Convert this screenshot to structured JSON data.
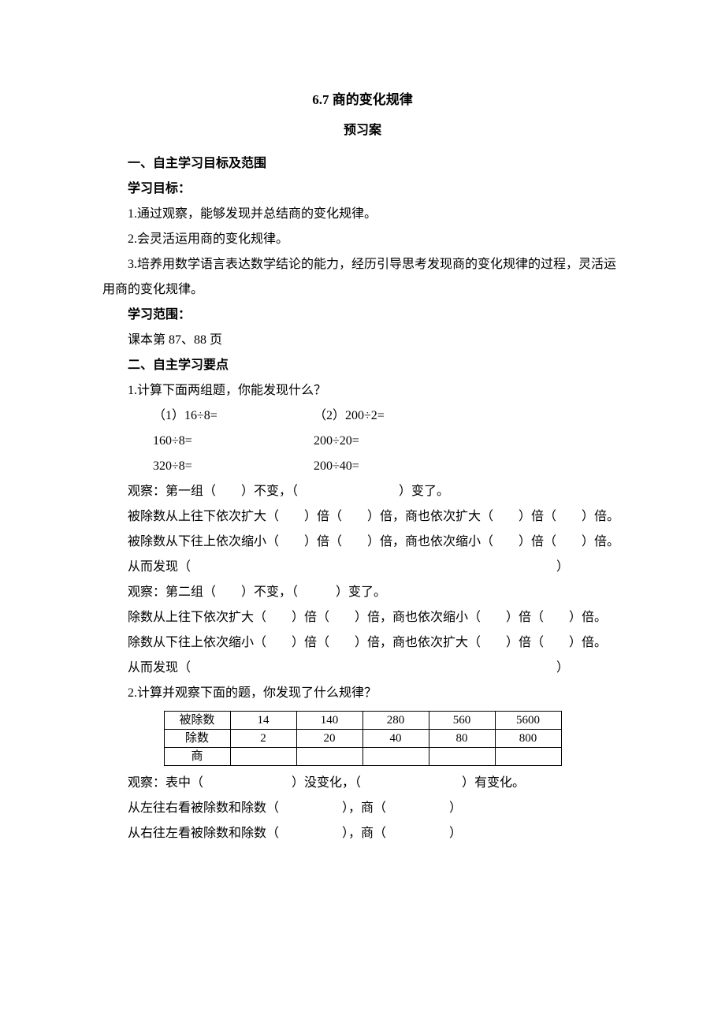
{
  "title": "6.7 商的变化规律",
  "subtitle": "预习案",
  "section1": {
    "head": "一、自主学习目标及范围",
    "goal_label": "学习目标：",
    "g1": "1.通过观察，能够发现并总结商的变化规律。",
    "g2": "2.会灵活运用商的变化规律。",
    "g3": "3.培养用数学语言表达数学结论的能力，经历引导思考发现商的变化规律的过程，灵活运用商的变化规律。",
    "range_label": "学习范围：",
    "range": "课本第 87、88 页"
  },
  "section2": {
    "head": "二、自主学习要点",
    "q1": "1.计算下面两组题，你能发现什么？",
    "eq_a1": "（1）16÷8=",
    "eq_b1": "（2）200÷2=",
    "eq_a2": "160÷8=",
    "eq_b2": "200÷20=",
    "eq_a3": "320÷8=",
    "eq_b3": "200÷40=",
    "obs1": "观察：第一组（　　）不变，（　　　　　　　　）变了。",
    "l1": "被除数从上往下依次扩大（　　）倍（　　）倍，商也依次扩大（　　）倍（　　）倍。",
    "l2": "被除数从下往上依次缩小（　　）倍（　　）倍，商也依次缩小（　　）倍（　　）倍。",
    "find1": "从而发现（　　　　　　　　　　　　　　　　　　　　　　　　　　　　　）",
    "obs2": "观察：第二组（　　）不变，（　　　）变了。",
    "l3": "除数从上往下依次扩大（　　）倍（　　）倍，商也依次缩小（　　）倍（　　）倍。",
    "l4": "除数从下往上依次缩小（　　）倍（　　）倍，商也依次扩大（　　）倍（　　）倍。",
    "find2": "从而发现（　　　　　　　　　　　　　　　　　　　　　　　　　　　　　）",
    "q2": "2.计算并观察下面的题，你发现了什么规律？",
    "table": {
      "row_heads": [
        "被除数",
        "除数",
        "商"
      ],
      "r1": [
        "14",
        "140",
        "280",
        "560",
        "5600"
      ],
      "r2": [
        "2",
        "20",
        "40",
        "80",
        "800"
      ],
      "r3": [
        "",
        "",
        "",
        "",
        ""
      ]
    },
    "obs3": "观察：表中（　　　　　　　）没变化，（　　　　　　　　）有变化。",
    "l5": "从左往右看被除数和除数（　　　　　），商（　　　　　）",
    "l6": "从右往左看被除数和除数（　　　　　），商（　　　　　）"
  }
}
